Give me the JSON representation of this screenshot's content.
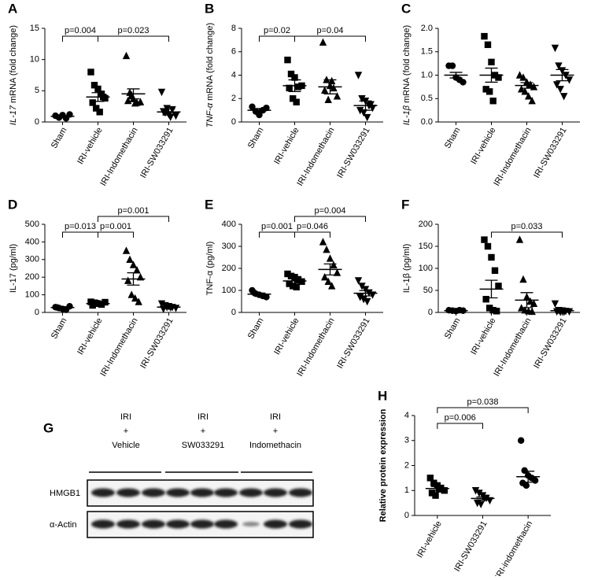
{
  "chart_data": [
    {
      "type": "dotplot",
      "panel": "A",
      "ylabel_italic": "IL-17",
      "ylabel": "mRNA (fold change)",
      "categories": [
        "Sham",
        "IRI-vehicle",
        "IRI-Indomethacin",
        "IRI-SW033291"
      ],
      "markers": [
        "circle",
        "square",
        "triangle",
        "triangle-down"
      ],
      "color": "#000000",
      "values": [
        [
          1.0,
          0.7,
          1.1,
          0.6,
          1.2
        ],
        [
          8.0,
          5.9,
          5.3,
          4.5,
          3.8,
          3.1,
          2.2,
          1.6,
          4.0
        ],
        [
          10.6,
          4.7,
          3.7,
          3.1,
          3.2,
          3.4,
          4.3,
          3.0
        ],
        [
          4.8,
          1.5,
          1.2,
          2.0,
          1.0,
          1.7,
          2.2,
          0.8
        ]
      ],
      "mean": [
        0.9,
        4.0,
        4.5,
        1.6
      ],
      "sem": [
        0.15,
        0.7,
        0.8,
        0.5
      ],
      "ylim": [
        0,
        15
      ],
      "yticks": [
        0,
        5,
        10,
        15
      ],
      "comparisons": [
        {
          "from": 0,
          "to": 1,
          "label": "p=0.004"
        },
        {
          "from": 1,
          "to": 3,
          "label": "p=0.023"
        }
      ]
    },
    {
      "type": "dotplot",
      "panel": "B",
      "ylabel_italic": "TNF-α",
      "ylabel": "mRNA (fold change)",
      "categories": [
        "Sham",
        "IRI-vehicle",
        "IRI-Indomethacin",
        "IRI-SW033291"
      ],
      "markers": [
        "circle",
        "square",
        "triangle",
        "triangle-down"
      ],
      "color": "#000000",
      "values": [
        [
          1.3,
          0.9,
          0.6,
          1.0,
          1.2
        ],
        [
          5.3,
          4.1,
          3.8,
          3.0,
          3.1,
          2.9,
          2.0,
          1.7
        ],
        [
          6.8,
          3.6,
          3.1,
          2.9,
          2.2,
          2.7,
          1.9,
          3.5
        ],
        [
          4.0,
          2.0,
          1.8,
          1.4,
          1.2,
          1.0,
          0.8,
          0.4,
          1.5
        ]
      ],
      "mean": [
        1.0,
        3.1,
        3.0,
        1.4
      ],
      "sem": [
        0.15,
        0.5,
        0.6,
        0.4
      ],
      "ylim": [
        0,
        8
      ],
      "yticks": [
        0,
        2,
        4,
        6,
        8
      ],
      "comparisons": [
        {
          "from": 0,
          "to": 1,
          "label": "p=0.02"
        },
        {
          "from": 1,
          "to": 3,
          "label": "p=0.04"
        }
      ]
    },
    {
      "type": "dotplot",
      "panel": "C",
      "ylabel_italic": "IL-1β",
      "ylabel": "mRNA (fold change)",
      "categories": [
        "Sham",
        "IRI-vehicle",
        "IRI-Indomethacin",
        "IRI-SW033291"
      ],
      "markers": [
        "circle",
        "square",
        "triangle",
        "triangle-down"
      ],
      "color": "#000000",
      "values": [
        [
          1.2,
          1.2,
          0.95,
          0.9,
          0.85
        ],
        [
          1.83,
          1.65,
          1.28,
          1.0,
          0.95,
          0.7,
          0.65,
          0.45
        ],
        [
          1.0,
          0.95,
          0.85,
          0.8,
          0.75,
          0.7,
          0.65,
          0.55,
          0.45
        ],
        [
          1.58,
          1.2,
          1.1,
          1.0,
          0.9,
          0.8,
          0.7,
          0.55
        ]
      ],
      "mean": [
        1.0,
        1.0,
        0.78,
        1.0
      ],
      "sem": [
        0.06,
        0.15,
        0.06,
        0.12
      ],
      "ylim": [
        0,
        2
      ],
      "yticks": [
        {
          "value": 0,
          "label": "0.0"
        },
        0.5,
        {
          "value": 1,
          "label": "1.0"
        },
        1.5,
        {
          "value": 2,
          "label": "2.0"
        }
      ],
      "comparisons": []
    },
    {
      "type": "dotplot",
      "panel": "D",
      "ylabel": "IL-17 (pg/ml)",
      "categories": [
        "Sham",
        "IRI-vehicle",
        "IRI-Indomethacin",
        "IRI-SW033291"
      ],
      "markers": [
        "circle",
        "square",
        "triangle",
        "triangle-down"
      ],
      "color": "#000000",
      "values": [
        [
          30,
          25,
          20,
          15,
          35,
          28
        ],
        [
          60,
          55,
          50,
          45,
          58,
          40,
          52
        ],
        [
          350,
          300,
          270,
          240,
          200,
          180,
          100,
          80,
          60
        ],
        [
          50,
          40,
          35,
          30,
          25,
          20,
          30,
          28
        ]
      ],
      "mean": [
        28,
        50,
        190,
        30
      ],
      "sem": [
        5,
        4,
        35,
        4
      ],
      "ylim": [
        0,
        500
      ],
      "yticks": [
        0,
        100,
        200,
        300,
        400,
        500
      ],
      "comparisons": [
        {
          "from": 0,
          "to": 1,
          "label": "p=0.013"
        },
        {
          "from": 1,
          "to": 2,
          "label": "p=0.001"
        },
        {
          "from": 1,
          "to": 3,
          "label": "p=0.001"
        }
      ]
    },
    {
      "type": "dotplot",
      "panel": "E",
      "ylabel": "TNF-α (pg/ml)",
      "categories": [
        "Sham",
        "IRI-vehicle",
        "IRI-Indomethacin",
        "IRI-SW033291"
      ],
      "markers": [
        "circle",
        "square",
        "triangle",
        "triangle-down"
      ],
      "color": "#000000",
      "values": [
        [
          100,
          85,
          80,
          75,
          70,
          90
        ],
        [
          175,
          165,
          160,
          150,
          140,
          130,
          120,
          115
        ],
        [
          320,
          285,
          245,
          215,
          180,
          160,
          140,
          120
        ],
        [
          145,
          120,
          105,
          90,
          80,
          70,
          60,
          50
        ]
      ],
      "mean": [
        83,
        143,
        195,
        87
      ],
      "sem": [
        5,
        10,
        25,
        12
      ],
      "ylim": [
        0,
        400
      ],
      "yticks": [
        0,
        100,
        200,
        300,
        400
      ],
      "comparisons": [
        {
          "from": 0,
          "to": 1,
          "label": "p=0.001"
        },
        {
          "from": 1,
          "to": 2,
          "label": "p=0.046"
        },
        {
          "from": 1,
          "to": 3,
          "label": "p=0.004"
        }
      ]
    },
    {
      "type": "dotplot",
      "panel": "F",
      "ylabel": "IL-1β (pg/ml)",
      "categories": [
        "Sham",
        "IRI-vehicle",
        "IRI-Indomethacin",
        "IRI-SW033291"
      ],
      "markers": [
        "circle",
        "square",
        "triangle",
        "triangle-down"
      ],
      "color": "#000000",
      "values": [
        [
          5,
          4,
          3,
          5,
          4
        ],
        [
          165,
          150,
          125,
          95,
          60,
          30,
          10,
          5,
          3
        ],
        [
          165,
          75,
          35,
          25,
          20,
          10,
          5,
          3,
          2
        ],
        [
          20,
          5,
          4,
          3,
          2,
          2,
          1,
          1
        ]
      ],
      "mean": [
        4,
        53,
        28,
        4
      ],
      "sem": [
        0.5,
        20,
        17,
        2
      ],
      "ylim": [
        0,
        200
      ],
      "yticks": [
        0,
        50,
        100,
        150,
        200
      ],
      "comparisons": [
        {
          "from": 1,
          "to": 3,
          "label": "p=0.033"
        }
      ]
    },
    {
      "type": "dotplot",
      "panel": "H",
      "ylabel": "Relative protein expression",
      "categories": [
        "IRI-vehicle",
        "IRI-SW033291",
        "IRI-indomethacin"
      ],
      "markers": [
        "square",
        "triangle-down",
        "circle"
      ],
      "color": "#000000",
      "values": [
        [
          1.5,
          1.3,
          1.2,
          1.1,
          1.0,
          0.9,
          0.8,
          1.05
        ],
        [
          1.0,
          0.9,
          0.8,
          0.7,
          0.6,
          0.5,
          0.45,
          0.7
        ],
        [
          3.0,
          1.8,
          1.6,
          1.5,
          1.4,
          1.3,
          1.2
        ]
      ],
      "mean": [
        1.08,
        0.68,
        1.55
      ],
      "sem": [
        0.08,
        0.06,
        0.22
      ],
      "ylim": [
        0,
        4
      ],
      "yticks": [
        0,
        1,
        2,
        3,
        4
      ],
      "comparisons": [
        {
          "from": 0,
          "to": 1,
          "label": "p=0.006"
        },
        {
          "from": 0,
          "to": 2,
          "label": "p=0.038"
        }
      ]
    }
  ],
  "blot": {
    "panel": "G",
    "columns": [
      [
        "IRI",
        "+",
        "Vehicle"
      ],
      [
        "IRI",
        "+",
        "SW033291"
      ],
      [
        "IRI",
        "+",
        "Indomethacin"
      ]
    ],
    "rows": [
      "HMGB1",
      "α-Actin"
    ]
  }
}
